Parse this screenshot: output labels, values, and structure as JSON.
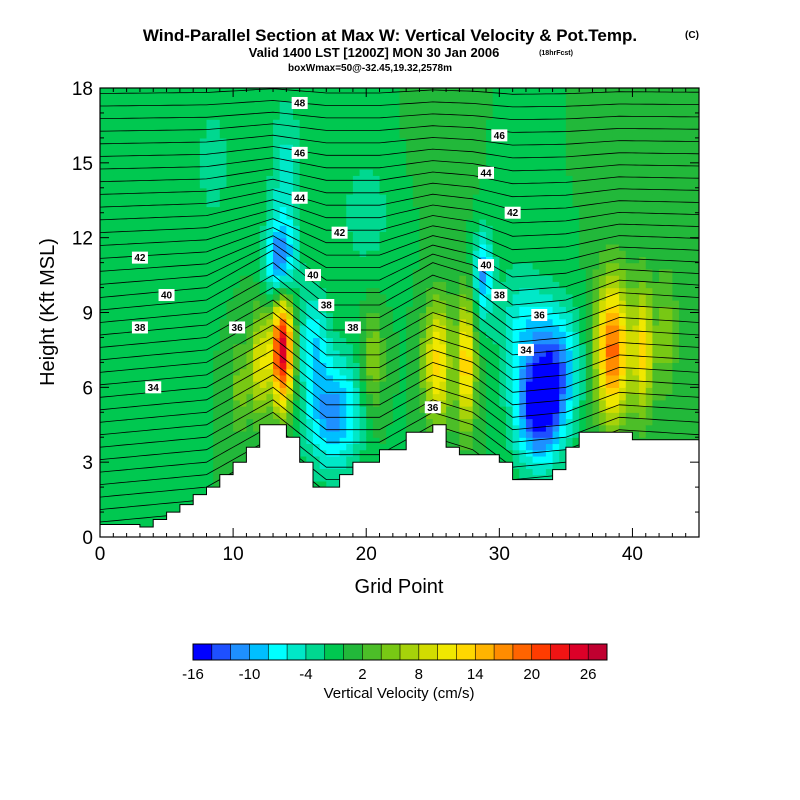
{
  "header": {
    "title": "Wind-Parallel Section at Max W: Vertical Velocity & Pot.Temp.",
    "title_mark": "(C)",
    "subtitle": "Valid 1400 LST [1200Z] MON 30 Jan 2006",
    "subtitle_mark": "(18hrFcst)",
    "subtitle2": "boxWmax=50@-32.45,19.32,2578m"
  },
  "chart_data": {
    "type": "heatmap",
    "xlabel": "Grid Point",
    "ylabel": "Height (Kft MSL)",
    "xlim": [
      0,
      45
    ],
    "ylim": [
      0,
      18
    ],
    "x_ticks": [
      "0",
      "10",
      "20",
      "30",
      "40"
    ],
    "x_tick_values": [
      0,
      10,
      20,
      30,
      40
    ],
    "y_ticks": [
      "0",
      "3",
      "6",
      "9",
      "12",
      "15",
      "18"
    ],
    "y_tick_values": [
      0,
      3,
      6,
      9,
      12,
      15,
      18
    ],
    "colorbar": {
      "label": "Vertical Velocity (cm/s)",
      "min": -16,
      "max": 30,
      "step": 2,
      "tick_labels": [
        "-16",
        "-10",
        "-4",
        "2",
        "8",
        "14",
        "20",
        "26"
      ],
      "tick_values": [
        -16,
        -10,
        -4,
        2,
        8,
        14,
        20,
        26
      ],
      "colors": [
        "#0000ff",
        "#1e50ff",
        "#1e90ff",
        "#00bfff",
        "#00ffff",
        "#00e8c8",
        "#00d890",
        "#00c850",
        "#22b83a",
        "#4cbe28",
        "#78c814",
        "#a6d20a",
        "#d2dc00",
        "#f0e800",
        "#ffd700",
        "#ffb400",
        "#ff8c00",
        "#ff6400",
        "#ff3c00",
        "#f01414",
        "#dc0028",
        "#c00030"
      ]
    },
    "terrain": [
      [
        0,
        0.5
      ],
      [
        2,
        0.5
      ],
      [
        3,
        0.5
      ],
      [
        3,
        0.4
      ],
      [
        4,
        0.4
      ],
      [
        4,
        0.7
      ],
      [
        5,
        0.7
      ],
      [
        5,
        1.0
      ],
      [
        6,
        1.0
      ],
      [
        6,
        1.3
      ],
      [
        7,
        1.3
      ],
      [
        7,
        1.7
      ],
      [
        8,
        1.7
      ],
      [
        8,
        2.0
      ],
      [
        9,
        2.0
      ],
      [
        9,
        2.5
      ],
      [
        10,
        2.5
      ],
      [
        10,
        3.0
      ],
      [
        11,
        3.0
      ],
      [
        11,
        3.6
      ],
      [
        12,
        3.6
      ],
      [
        12,
        4.5
      ],
      [
        14,
        4.5
      ],
      [
        14,
        4.0
      ],
      [
        15,
        4.0
      ],
      [
        15,
        3.0
      ],
      [
        16,
        3.0
      ],
      [
        16,
        2.0
      ],
      [
        18,
        2.0
      ],
      [
        18,
        2.5
      ],
      [
        19,
        2.5
      ],
      [
        19,
        3.0
      ],
      [
        21,
        3.0
      ],
      [
        21,
        3.5
      ],
      [
        23,
        3.5
      ],
      [
        23,
        4.2
      ],
      [
        25,
        4.2
      ],
      [
        25,
        4.5
      ],
      [
        26,
        4.5
      ],
      [
        26,
        3.6
      ],
      [
        27,
        3.6
      ],
      [
        27,
        3.3
      ],
      [
        30,
        3.3
      ],
      [
        30,
        3.0
      ],
      [
        31,
        3.0
      ],
      [
        31,
        2.3
      ],
      [
        34,
        2.3
      ],
      [
        34,
        2.7
      ],
      [
        35,
        2.7
      ],
      [
        35,
        3.6
      ],
      [
        36,
        3.6
      ],
      [
        36,
        4.2
      ],
      [
        40,
        4.2
      ],
      [
        40,
        3.9
      ],
      [
        45,
        3.9
      ]
    ],
    "w_field": [
      {
        "x": 13.7,
        "y": 7.5,
        "value": 26,
        "sx": 0.6,
        "sy": 1.6
      },
      {
        "x": 12.0,
        "y": 7.0,
        "value": 10,
        "sx": 0.5,
        "sy": 1.5
      },
      {
        "x": 10.5,
        "y": 6.0,
        "value": 5,
        "sx": 0.5,
        "sy": 1.3
      },
      {
        "x": 16.0,
        "y": 8.0,
        "value": -7,
        "sx": 0.8,
        "sy": 1.4
      },
      {
        "x": 17.5,
        "y": 5.0,
        "value": -11,
        "sx": 1.5,
        "sy": 1.6
      },
      {
        "x": 20.5,
        "y": 7.0,
        "value": 6,
        "sx": 0.6,
        "sy": 1.6
      },
      {
        "x": 24.5,
        "y": 7.0,
        "value": 4,
        "sx": 0.5,
        "sy": 1.5
      },
      {
        "x": 25.5,
        "y": 7.0,
        "value": 12,
        "sx": 0.6,
        "sy": 1.8
      },
      {
        "x": 27.5,
        "y": 7.0,
        "value": 14,
        "sx": 0.5,
        "sy": 1.8
      },
      {
        "x": 28.8,
        "y": 10.5,
        "value": -10,
        "sx": 0.5,
        "sy": 1.2
      },
      {
        "x": 33.0,
        "y": 5.2,
        "value": -16,
        "sx": 1.3,
        "sy": 1.6
      },
      {
        "x": 34.5,
        "y": 7.0,
        "value": -8,
        "sx": 1.2,
        "sy": 1.6
      },
      {
        "x": 32.0,
        "y": 8.5,
        "value": -6,
        "sx": 1.5,
        "sy": 1.5
      },
      {
        "x": 38.5,
        "y": 7.5,
        "value": 19,
        "sx": 0.9,
        "sy": 2.0
      },
      {
        "x": 40.8,
        "y": 7.5,
        "value": 12,
        "sx": 0.5,
        "sy": 1.8
      },
      {
        "x": 42.5,
        "y": 8.0,
        "value": 5,
        "sx": 0.6,
        "sy": 1.8
      },
      {
        "x": 13.5,
        "y": 11.0,
        "value": -12,
        "sx": 0.8,
        "sy": 1.2
      },
      {
        "x": 14.0,
        "y": 14.5,
        "value": -5,
        "sx": 0.9,
        "sy": 2.2
      },
      {
        "x": 8.5,
        "y": 15.0,
        "value": -3,
        "sx": 1.0,
        "sy": 2.0
      },
      {
        "x": 20.0,
        "y": 13.0,
        "value": -3,
        "sx": 1.5,
        "sy": 2.0
      },
      {
        "x": 31.0,
        "y": 14.0,
        "value": -2,
        "sx": 1.0,
        "sy": 2.0
      },
      {
        "x": 5.0,
        "y": 11.0,
        "value": -2,
        "sx": 1.2,
        "sy": 2.0
      },
      {
        "x": 26.0,
        "y": 16.0,
        "value": 2,
        "sx": 1.5,
        "sy": 1.5
      },
      {
        "x": 43.0,
        "y": 14.0,
        "value": 1,
        "sx": 2.0,
        "sy": 3.0
      }
    ],
    "theta_ref": [
      {
        "x": 0,
        "y": 9.6
      },
      {
        "x": 8,
        "y": 10.0
      },
      {
        "x": 13,
        "y": 11.5
      },
      {
        "x": 17,
        "y": 9.8
      },
      {
        "x": 21,
        "y": 9.8
      },
      {
        "x": 25,
        "y": 11.0
      },
      {
        "x": 28,
        "y": 10.5
      },
      {
        "x": 31,
        "y": 9.3
      },
      {
        "x": 35,
        "y": 9.5
      },
      {
        "x": 39,
        "y": 10.3
      },
      {
        "x": 45,
        "y": 10.1
      }
    ],
    "theta_labels": [
      {
        "text": "34",
        "x": 4,
        "y": 6.0
      },
      {
        "text": "38",
        "x": 3,
        "y": 8.4
      },
      {
        "text": "40",
        "x": 5,
        "y": 9.7
      },
      {
        "text": "42",
        "x": 3,
        "y": 11.2
      },
      {
        "text": "36",
        "x": 10.3,
        "y": 8.4
      },
      {
        "text": "40",
        "x": 16,
        "y": 10.5
      },
      {
        "text": "38",
        "x": 17,
        "y": 9.3
      },
      {
        "text": "38",
        "x": 19,
        "y": 8.4
      },
      {
        "text": "42",
        "x": 18,
        "y": 12.2
      },
      {
        "text": "44",
        "x": 15,
        "y": 13.6
      },
      {
        "text": "46",
        "x": 15,
        "y": 15.4
      },
      {
        "text": "48",
        "x": 15,
        "y": 17.4
      },
      {
        "text": "36",
        "x": 25,
        "y": 5.2
      },
      {
        "text": "40",
        "x": 29,
        "y": 10.9
      },
      {
        "text": "38",
        "x": 30,
        "y": 9.7
      },
      {
        "text": "36",
        "x": 33,
        "y": 8.9
      },
      {
        "text": "34",
        "x": 32,
        "y": 7.5
      },
      {
        "text": "42",
        "x": 31,
        "y": 13.0
      },
      {
        "text": "44",
        "x": 29,
        "y": 14.6
      },
      {
        "text": "46",
        "x": 30,
        "y": 16.1
      }
    ]
  }
}
